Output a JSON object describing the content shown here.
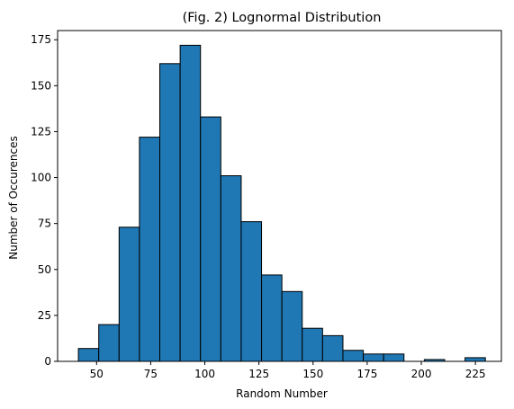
{
  "chart_data": {
    "type": "bar",
    "title": "(Fig. 2) Lognormal Distribution",
    "xlabel": "Random Number",
    "ylabel": "Number of Occurences",
    "xlim": [
      32,
      237
    ],
    "ylim": [
      0,
      180
    ],
    "bar_color": "#1f77b4",
    "edge_color": "#000000",
    "grid": false,
    "x_ticks": [
      50,
      75,
      100,
      125,
      150,
      175,
      200,
      225
    ],
    "y_ticks": [
      0,
      25,
      50,
      75,
      100,
      125,
      150,
      175
    ],
    "bins": [
      {
        "x0": 41.6,
        "x1": 51.0,
        "value": 7
      },
      {
        "x0": 51.0,
        "x1": 60.4,
        "value": 20
      },
      {
        "x0": 60.4,
        "x1": 69.8,
        "value": 73
      },
      {
        "x0": 69.8,
        "x1": 79.2,
        "value": 122
      },
      {
        "x0": 79.2,
        "x1": 88.6,
        "value": 162
      },
      {
        "x0": 88.6,
        "x1": 98.0,
        "value": 172
      },
      {
        "x0": 98.0,
        "x1": 107.4,
        "value": 133
      },
      {
        "x0": 107.4,
        "x1": 116.8,
        "value": 101
      },
      {
        "x0": 116.8,
        "x1": 126.2,
        "value": 76
      },
      {
        "x0": 126.2,
        "x1": 135.6,
        "value": 47
      },
      {
        "x0": 135.6,
        "x1": 145.0,
        "value": 38
      },
      {
        "x0": 145.0,
        "x1": 154.4,
        "value": 18
      },
      {
        "x0": 154.4,
        "x1": 163.8,
        "value": 14
      },
      {
        "x0": 163.8,
        "x1": 173.2,
        "value": 6
      },
      {
        "x0": 173.2,
        "x1": 182.6,
        "value": 4
      },
      {
        "x0": 182.6,
        "x1": 192.0,
        "value": 4
      },
      {
        "x0": 192.0,
        "x1": 201.4,
        "value": 0
      },
      {
        "x0": 201.4,
        "x1": 210.8,
        "value": 1
      },
      {
        "x0": 210.8,
        "x1": 220.2,
        "value": 0
      },
      {
        "x0": 220.2,
        "x1": 229.6,
        "value": 2
      }
    ]
  }
}
